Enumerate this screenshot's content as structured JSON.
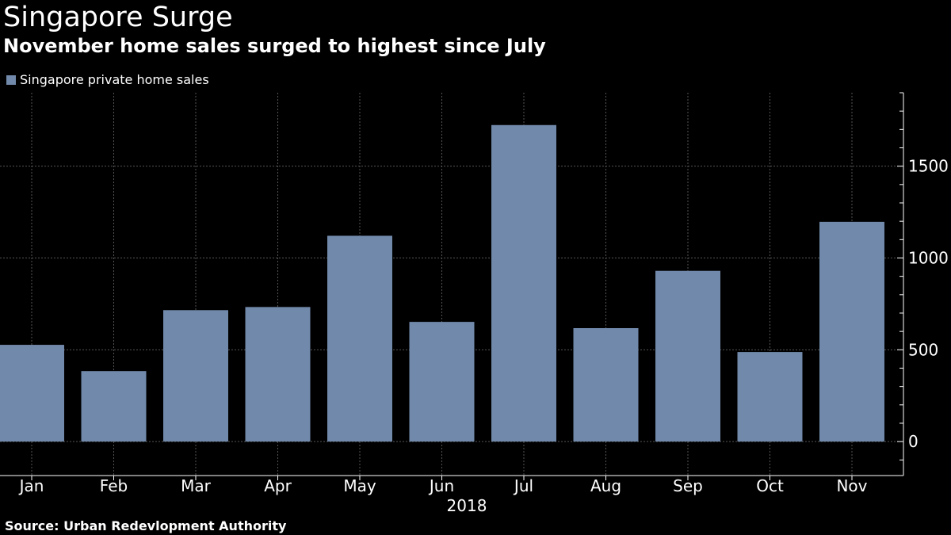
{
  "header": {
    "title": "Singapore Surge",
    "subtitle": "November home sales surged to highest since July"
  },
  "footer": {
    "source": "Source: Urban Redevlopment Authority"
  },
  "colors": {
    "background": "#000000",
    "bar": "#7189AA",
    "text": "#FFFFFF",
    "grid": "#555555"
  },
  "chart_data": {
    "type": "bar",
    "title": "Singapore Surge",
    "subtitle": "November home sales surged to highest since July",
    "categories": [
      "Jan",
      "Feb",
      "Mar",
      "Apr",
      "May",
      "Jun",
      "Jul",
      "Aug",
      "Sep",
      "Oct",
      "Nov"
    ],
    "xlabel": "2018",
    "ylabel": "",
    "series": [
      {
        "name": "Singapore private home sales",
        "values": [
          527,
          384,
          716,
          733,
          1121,
          652,
          1724,
          618,
          930,
          488,
          1197
        ]
      }
    ],
    "ylim": [
      -185,
      1900
    ],
    "yticks": [
      0,
      500,
      1000,
      1500
    ],
    "ytick_labels": [
      "0",
      "500",
      "1000",
      "1500"
    ],
    "minor_ytick_step": 100,
    "y_axis_position": "right",
    "grid": true,
    "legend_position": "top-left"
  }
}
